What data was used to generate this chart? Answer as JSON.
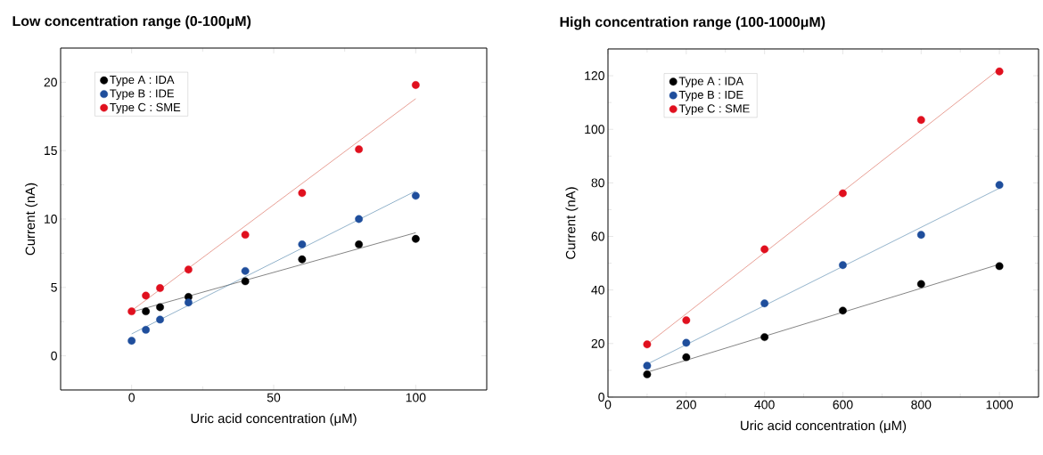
{
  "chart_data": [
    {
      "type": "scatter",
      "title": "Low concentration range (0-100μM)",
      "xlabel": "Uric acid concentration (μM)",
      "ylabel": "Current (nA)",
      "x": [
        0,
        5,
        10,
        20,
        40,
        60,
        80,
        100
      ],
      "marker": "circle",
      "xlim": [
        -25,
        125
      ],
      "ylim": [
        -2.5,
        22.5
      ],
      "xticks": [
        0,
        50,
        100
      ],
      "yticks": [
        0,
        5,
        10,
        15,
        20
      ],
      "grid": false,
      "legend": "top left",
      "series": [
        {
          "name": "Type A : IDA",
          "color": "#000000",
          "values": [
            null,
            3.25,
            3.55,
            4.3,
            5.45,
            7.05,
            8.15,
            8.55
          ]
        },
        {
          "name": "Type B : IDE",
          "color": "#1f4e9c",
          "values": [
            1.1,
            1.9,
            2.65,
            3.9,
            6.2,
            8.15,
            10.0,
            11.7
          ]
        },
        {
          "name": "Type C : SME",
          "color": "#e0101e",
          "values": [
            3.25,
            4.4,
            4.95,
            6.3,
            8.85,
            11.9,
            15.1,
            19.8
          ]
        },
        {
          "type": "line",
          "marker": "none",
          "color": "#333333",
          "x": [
            0,
            100
          ],
          "values": [
            3.2,
            9.0
          ]
        },
        {
          "type": "line",
          "marker": "none",
          "color": "#4a7fa8",
          "x": [
            0,
            100
          ],
          "values": [
            1.6,
            12.05
          ]
        },
        {
          "type": "line",
          "marker": "none",
          "color": "#d9604f",
          "x": [
            0,
            100
          ],
          "values": [
            3.3,
            18.8
          ]
        }
      ]
    },
    {
      "type": "scatter",
      "title": "High concentration range (100-1000μM)",
      "xlabel": "Uric acid concentration (μM)",
      "ylabel": "Current (nA)",
      "x": [
        100,
        200,
        400,
        600,
        800,
        1000
      ],
      "marker": "circle",
      "xlim": [
        0,
        1100
      ],
      "ylim": [
        0,
        130
      ],
      "xticks": [
        0,
        200,
        400,
        600,
        800,
        1000
      ],
      "yticks": [
        0,
        20,
        40,
        60,
        80,
        100,
        120
      ],
      "grid": false,
      "legend": "top left",
      "series": [
        {
          "name": "Type A : IDA",
          "color": "#000000",
          "values": [
            8.5,
            14.9,
            22.4,
            32.3,
            42.2,
            48.9
          ]
        },
        {
          "name": "Type B : IDE",
          "color": "#1f4e9c",
          "values": [
            11.7,
            20.3,
            35.0,
            49.3,
            60.6,
            79.2
          ]
        },
        {
          "name": "Type C : SME",
          "color": "#e0101e",
          "values": [
            19.7,
            28.7,
            55.2,
            76.1,
            103.5,
            121.6
          ]
        },
        {
          "type": "line",
          "marker": "none",
          "color": "#333333",
          "x": [
            100,
            1000
          ],
          "values": [
            9.3,
            49.6
          ]
        },
        {
          "type": "line",
          "marker": "none",
          "color": "#4a7fa8",
          "x": [
            100,
            1000
          ],
          "values": [
            12.3,
            78.0
          ]
        },
        {
          "type": "line",
          "marker": "none",
          "color": "#d9604f",
          "x": [
            100,
            1000
          ],
          "values": [
            19.7,
            122.5
          ]
        }
      ]
    }
  ]
}
